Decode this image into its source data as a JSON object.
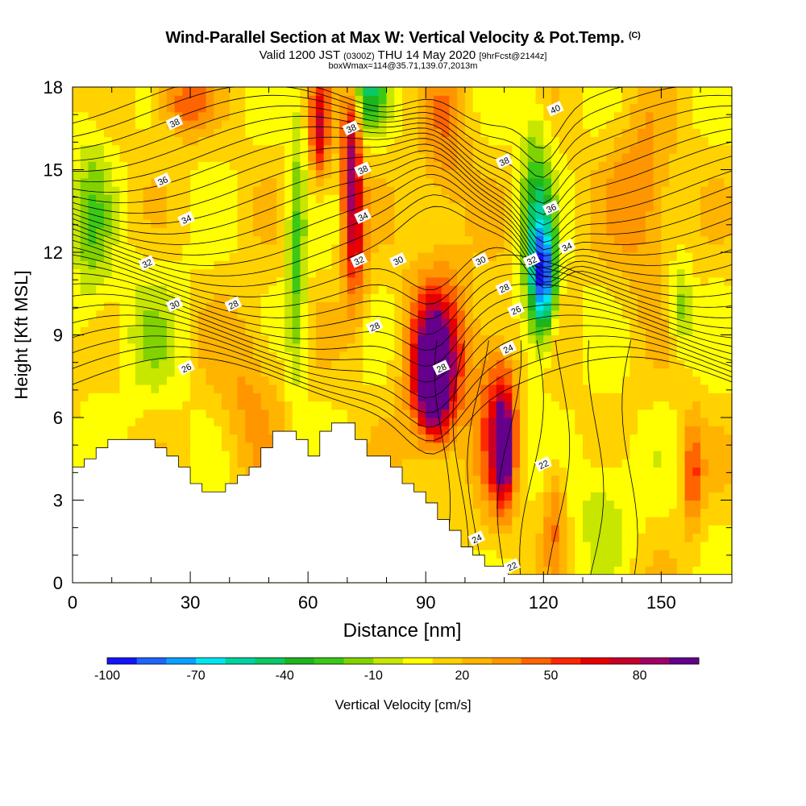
{
  "header": {
    "title": "Wind-Parallel Section at Max W: Vertical Velocity & Pot.Temp.",
    "copyright": "(C)",
    "valid_prefix": "Valid 1200 JST",
    "valid_utc": "(0300Z)",
    "valid_date": "THU 14 May 2020",
    "forecast": "[9hrFcst@2144z]",
    "box_info": "boxWmax=114@35.71,139.07,2013m"
  },
  "colorbar": {
    "label": "Vertical Velocity [cm/s]",
    "tick_labels": [
      "-100",
      "-70",
      "-40",
      "-10",
      "20",
      "50",
      "80"
    ],
    "colors": [
      "#1414ff",
      "#1e64ff",
      "#0aa0ff",
      "#00e6f0",
      "#00d2a0",
      "#0ac864",
      "#1eb41e",
      "#3cc814",
      "#82d200",
      "#c8e600",
      "#ffff00",
      "#ffd200",
      "#ffb400",
      "#ff9600",
      "#ff6400",
      "#ff2800",
      "#e60000",
      "#c80028",
      "#a00064",
      "#64008c"
    ]
  },
  "chart_data": {
    "type": "heatmap",
    "title": "Wind-Parallel Section at Max W: Vertical Velocity & Pot.Temp.",
    "xlabel": "Distance [nm]",
    "ylabel": "Height [Kft MSL]",
    "xlim": [
      0,
      168
    ],
    "ylim": [
      0,
      18
    ],
    "x_ticks": [
      0,
      30,
      60,
      90,
      120,
      150
    ],
    "y_ticks": [
      0,
      3,
      6,
      9,
      12,
      15,
      18
    ],
    "fill_variable": "Vertical Velocity [cm/s]",
    "fill_range": [
      -100,
      100
    ],
    "contour_variable": "Potential Temperature",
    "contour_labels": [
      {
        "text": "38",
        "x": 26,
        "y": 16.7
      },
      {
        "text": "36",
        "x": 23,
        "y": 14.6
      },
      {
        "text": "34",
        "x": 29,
        "y": 13.2
      },
      {
        "text": "32",
        "x": 19,
        "y": 11.6
      },
      {
        "text": "30",
        "x": 26,
        "y": 10.1
      },
      {
        "text": "28",
        "x": 41,
        "y": 10.1
      },
      {
        "text": "26",
        "x": 29,
        "y": 7.8
      },
      {
        "text": "38",
        "x": 71,
        "y": 16.5
      },
      {
        "text": "38",
        "x": 74,
        "y": 15.0
      },
      {
        "text": "34",
        "x": 74,
        "y": 13.3
      },
      {
        "text": "32",
        "x": 73,
        "y": 11.7
      },
      {
        "text": "30",
        "x": 83,
        "y": 11.7
      },
      {
        "text": "28",
        "x": 77,
        "y": 9.3
      },
      {
        "text": "28",
        "x": 94,
        "y": 7.8
      },
      {
        "text": "30",
        "x": 104,
        "y": 11.7
      },
      {
        "text": "28",
        "x": 110,
        "y": 10.7
      },
      {
        "text": "26",
        "x": 113,
        "y": 9.9
      },
      {
        "text": "24",
        "x": 111,
        "y": 8.5
      },
      {
        "text": "22",
        "x": 120,
        "y": 4.3
      },
      {
        "text": "24",
        "x": 103,
        "y": 1.6
      },
      {
        "text": "22",
        "x": 112,
        "y": 0.6
      },
      {
        "text": "40",
        "x": 123,
        "y": 17.2
      },
      {
        "text": "38",
        "x": 110,
        "y": 15.3
      },
      {
        "text": "36",
        "x": 122,
        "y": 13.6
      },
      {
        "text": "34",
        "x": 126,
        "y": 12.2
      },
      {
        "text": "32",
        "x": 117,
        "y": 11.7
      }
    ],
    "terrain_top_kft": [
      [
        0,
        4.2
      ],
      [
        3,
        4.5
      ],
      [
        6,
        4.9
      ],
      [
        9,
        5.2
      ],
      [
        12,
        5.2
      ],
      [
        15,
        5.2
      ],
      [
        18,
        5.2
      ],
      [
        21,
        4.9
      ],
      [
        24,
        4.6
      ],
      [
        27,
        4.2
      ],
      [
        30,
        3.6
      ],
      [
        33,
        3.3
      ],
      [
        36,
        3.3
      ],
      [
        39,
        3.6
      ],
      [
        42,
        3.9
      ],
      [
        45,
        4.2
      ],
      [
        48,
        4.9
      ],
      [
        51,
        5.5
      ],
      [
        54,
        5.5
      ],
      [
        57,
        5.2
      ],
      [
        60,
        4.6
      ],
      [
        63,
        5.5
      ],
      [
        66,
        5.8
      ],
      [
        69,
        5.8
      ],
      [
        72,
        5.2
      ],
      [
        75,
        4.6
      ],
      [
        78,
        4.6
      ],
      [
        81,
        4.2
      ],
      [
        84,
        3.6
      ],
      [
        87,
        3.3
      ],
      [
        90,
        2.9
      ],
      [
        93,
        2.3
      ],
      [
        96,
        1.9
      ],
      [
        99,
        1.3
      ],
      [
        102,
        1.0
      ],
      [
        105,
        0.6
      ],
      [
        108,
        0.6
      ],
      [
        111,
        0.3
      ],
      [
        114,
        0.3
      ],
      [
        117,
        0.3
      ],
      [
        120,
        0.3
      ],
      [
        123,
        0.3
      ],
      [
        126,
        0.3
      ],
      [
        129,
        0.3
      ],
      [
        132,
        0.3
      ],
      [
        135,
        0.3
      ],
      [
        138,
        0.3
      ],
      [
        141,
        0.3
      ],
      [
        144,
        0.3
      ],
      [
        147,
        0.3
      ],
      [
        150,
        0.3
      ],
      [
        153,
        0.3
      ],
      [
        156,
        0.3
      ],
      [
        159,
        0.3
      ],
      [
        162,
        0.3
      ],
      [
        165,
        0.3
      ],
      [
        168,
        0.3
      ]
    ]
  }
}
